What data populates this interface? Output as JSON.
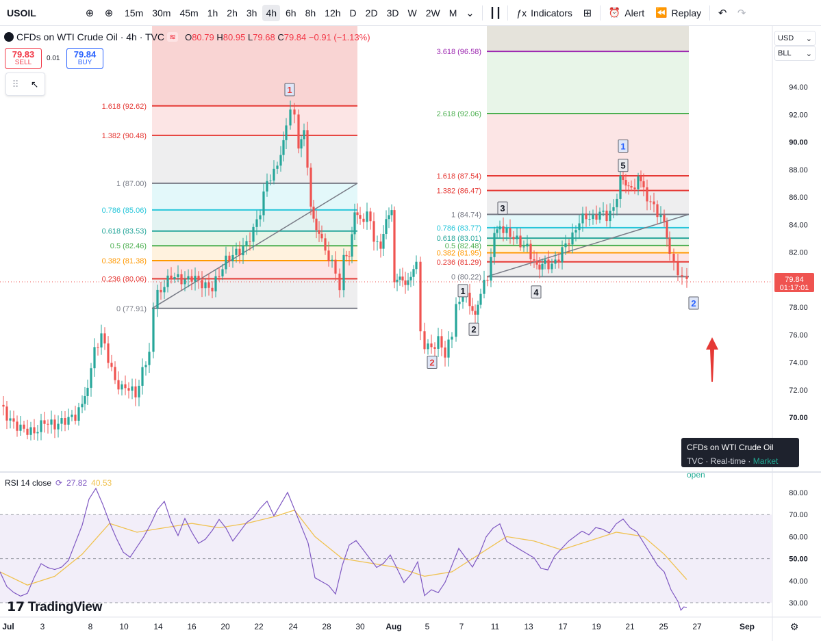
{
  "toolbar": {
    "symbol": "USOIL",
    "intervals": [
      "15m",
      "30m",
      "45m",
      "1h",
      "2h",
      "3h",
      "4h",
      "6h",
      "8h",
      "12h",
      "D",
      "2D",
      "3D",
      "W",
      "2W",
      "M"
    ],
    "active_interval": "4h",
    "indicators_label": "Indicators",
    "alert_label": "Alert",
    "replay_label": "Replay"
  },
  "legend": {
    "title": "CFDs on WTI Crude Oil · 4h · TVC",
    "open": "80.79",
    "high": "80.95",
    "low": "79.68",
    "close": "79.84",
    "change": "−0.91 (−1.13%)",
    "o_label": "O",
    "h_label": "H",
    "l_label": "L",
    "c_label": "C"
  },
  "trade": {
    "sell_price": "79.83",
    "sell_label": "SELL",
    "spread": "0.01",
    "buy_price": "79.84",
    "buy_label": "BUY"
  },
  "scale": {
    "currency": "USD",
    "unit": "BLL"
  },
  "last_price": {
    "value": "79.84",
    "countdown": "01:17:01"
  },
  "tooltip": {
    "title": "CFDs on WTI Crude Oil",
    "source": "TVC",
    "realtime": "Real-time",
    "status": "Market open"
  },
  "rsi": {
    "label": "RSI 14 close",
    "value": "27.82",
    "ma_value": "40.53"
  },
  "brand": {
    "logo_text": "TradingView"
  },
  "colors": {
    "up": "#26a69a",
    "down": "#ef5350",
    "rsi": "#7e57c2",
    "rsi_ma": "#f0c250",
    "label_red": "#e53935"
  },
  "chart_data": {
    "type": "candlestick",
    "price_axis": {
      "ticks": [
        70,
        72,
        74,
        76,
        78,
        80,
        82,
        84,
        86,
        88,
        90,
        92,
        94
      ],
      "bold_ticks": [
        70,
        80,
        90
      ],
      "range": [
        68.5,
        96.5
      ]
    },
    "rsi_axis": {
      "ticks": [
        30,
        40,
        50,
        60,
        70,
        80
      ],
      "bold_ticks": [
        50
      ],
      "band": [
        30,
        70
      ]
    },
    "x_ticks": [
      "Jul",
      "3",
      "8",
      "10",
      "14",
      "16",
      "20",
      "22",
      "24",
      "28",
      "30",
      "Aug",
      "5",
      "7",
      "11",
      "13",
      "17",
      "19",
      "21",
      "25",
      "27",
      "Sep"
    ],
    "price_path": [
      [
        0,
        70.9
      ],
      [
        10,
        70.1
      ],
      [
        20,
        69.5
      ],
      [
        35,
        69.1
      ],
      [
        50,
        68.9
      ],
      [
        65,
        69.7
      ],
      [
        80,
        69.4
      ],
      [
        95,
        69.8
      ],
      [
        110,
        70.1
      ],
      [
        120,
        70.9
      ],
      [
        128,
        72.4
      ],
      [
        138,
        74.8
      ],
      [
        148,
        76.0
      ],
      [
        158,
        74.3
      ],
      [
        168,
        72.6
      ],
      [
        178,
        72.1
      ],
      [
        188,
        72.2
      ],
      [
        198,
        71.6
      ],
      [
        208,
        73.3
      ],
      [
        218,
        74.8
      ],
      [
        224,
        78.1
      ],
      [
        230,
        78.9
      ],
      [
        240,
        79.6
      ],
      [
        250,
        80.3
      ],
      [
        260,
        80.1
      ],
      [
        270,
        79.9
      ],
      [
        280,
        80.2
      ],
      [
        290,
        79.9
      ],
      [
        300,
        79.5
      ],
      [
        310,
        79.4
      ],
      [
        320,
        80.4
      ],
      [
        330,
        81.4
      ],
      [
        340,
        81.8
      ],
      [
        350,
        82.1
      ],
      [
        360,
        82.6
      ],
      [
        370,
        83.6
      ],
      [
        380,
        85.0
      ],
      [
        390,
        87.2
      ],
      [
        400,
        87.7
      ],
      [
        410,
        89.2
      ],
      [
        418,
        91.0
      ],
      [
        424,
        92.7
      ],
      [
        430,
        91.7
      ],
      [
        436,
        89.6
      ],
      [
        444,
        90.6
      ],
      [
        454,
        85.6
      ],
      [
        462,
        83.6
      ],
      [
        470,
        82.7
      ],
      [
        480,
        81.6
      ],
      [
        490,
        80.6
      ],
      [
        496,
        78.9
      ],
      [
        502,
        82.1
      ],
      [
        510,
        81.7
      ],
      [
        518,
        84.6
      ],
      [
        526,
        84.1
      ],
      [
        536,
        84.9
      ],
      [
        546,
        83.1
      ],
      [
        556,
        82.1
      ],
      [
        564,
        84.6
      ],
      [
        572,
        85.4
      ],
      [
        576,
        80.1
      ],
      [
        584,
        80.2
      ],
      [
        592,
        79.3
      ],
      [
        600,
        79.9
      ],
      [
        608,
        81.3
      ],
      [
        614,
        76.0
      ],
      [
        620,
        75.3
      ],
      [
        630,
        75.0
      ],
      [
        640,
        75.6
      ],
      [
        650,
        74.6
      ],
      [
        660,
        76.0
      ],
      [
        666,
        77.9
      ],
      [
        676,
        79.1
      ],
      [
        686,
        78.3
      ],
      [
        694,
        77.8
      ],
      [
        702,
        79.1
      ],
      [
        712,
        80.2
      ],
      [
        722,
        83.1
      ],
      [
        730,
        83.9
      ],
      [
        740,
        83.4
      ],
      [
        750,
        83.1
      ],
      [
        760,
        82.6
      ],
      [
        770,
        82.3
      ],
      [
        780,
        81.3
      ],
      [
        788,
        80.4
      ],
      [
        796,
        81.2
      ],
      [
        806,
        81.0
      ],
      [
        816,
        81.6
      ],
      [
        826,
        82.6
      ],
      [
        836,
        83.1
      ],
      [
        846,
        84.3
      ],
      [
        856,
        84.6
      ],
      [
        866,
        84.4
      ],
      [
        876,
        84.9
      ],
      [
        886,
        84.6
      ],
      [
        896,
        85.1
      ],
      [
        906,
        87.3
      ],
      [
        914,
        86.5
      ],
      [
        922,
        86.6
      ],
      [
        932,
        87.2
      ],
      [
        940,
        86.4
      ],
      [
        950,
        85.6
      ],
      [
        960,
        84.9
      ],
      [
        970,
        84.1
      ],
      [
        978,
        82.1
      ],
      [
        984,
        80.9
      ],
      [
        990,
        80.6
      ],
      [
        996,
        80.2
      ],
      [
        1003,
        79.8
      ]
    ],
    "fib_retracements": [
      {
        "levels": [
          {
            "ratio": "1.618",
            "price": 92.62,
            "color": "#e53935"
          },
          {
            "ratio": "1.382",
            "price": 90.48,
            "color": "#e53935"
          },
          {
            "ratio": "1",
            "price": 87.0,
            "color": "#787b86"
          },
          {
            "ratio": "0.786",
            "price": 85.06,
            "color": "#26c6da"
          },
          {
            "ratio": "0.618",
            "price": 83.53,
            "color": "#26a69a"
          },
          {
            "ratio": "0.5",
            "price": 82.46,
            "color": "#4caf50"
          },
          {
            "ratio": "0.382",
            "price": 81.38,
            "color": "#ff9800"
          },
          {
            "ratio": "0.236",
            "price": 80.06,
            "color": "#e53935"
          },
          {
            "ratio": "0",
            "price": 77.91,
            "color": "#787b86"
          }
        ]
      },
      {
        "levels": [
          {
            "ratio": "3.618",
            "price": 96.58,
            "color": "#9c27b0"
          },
          {
            "ratio": "2.618",
            "price": 92.06,
            "color": "#4caf50"
          },
          {
            "ratio": "1.618",
            "price": 87.54,
            "color": "#e53935"
          },
          {
            "ratio": "1.382",
            "price": 86.47,
            "color": "#e53935"
          },
          {
            "ratio": "1",
            "price": 84.74,
            "color": "#787b86"
          },
          {
            "ratio": "0.786",
            "price": 83.77,
            "color": "#26c6da"
          },
          {
            "ratio": "0.618",
            "price": 83.01,
            "color": "#26a69a"
          },
          {
            "ratio": "0.5",
            "price": 82.48,
            "color": "#4caf50"
          },
          {
            "ratio": "0.382",
            "price": 81.95,
            "color": "#ff9800"
          },
          {
            "ratio": "0.236",
            "price": 81.29,
            "color": "#e53935"
          },
          {
            "ratio": "0",
            "price": 80.22,
            "color": "#787b86"
          }
        ]
      }
    ],
    "wave_labels": [
      {
        "text": "1",
        "color": "#e53935",
        "price": 93.8
      },
      {
        "text": "2",
        "color": "#e53935",
        "price": 74.0
      },
      {
        "text": "1",
        "color": "#131722",
        "price": 79.2
      },
      {
        "text": "2",
        "color": "#131722",
        "price": 76.4
      },
      {
        "text": "3",
        "color": "#131722",
        "price": 85.2
      },
      {
        "text": "4",
        "color": "#131722",
        "price": 79.1
      },
      {
        "text": "5",
        "color": "#131722",
        "price": 88.3
      },
      {
        "text": "1",
        "color": "#2962ff",
        "price": 89.7
      },
      {
        "text": "2",
        "color": "#2962ff",
        "price": 78.3
      }
    ],
    "rsi_path": [
      [
        0,
        44
      ],
      [
        10,
        37
      ],
      [
        20,
        34
      ],
      [
        30,
        32
      ],
      [
        40,
        33
      ],
      [
        50,
        40
      ],
      [
        60,
        46
      ],
      [
        70,
        44
      ],
      [
        80,
        43
      ],
      [
        90,
        44
      ],
      [
        100,
        47
      ],
      [
        110,
        55
      ],
      [
        120,
        63
      ],
      [
        130,
        75
      ],
      [
        140,
        80
      ],
      [
        150,
        73
      ],
      [
        160,
        65
      ],
      [
        170,
        58
      ],
      [
        180,
        52
      ],
      [
        190,
        50
      ],
      [
        200,
        55
      ],
      [
        210,
        60
      ],
      [
        220,
        66
      ],
      [
        230,
        73
      ],
      [
        240,
        77
      ],
      [
        250,
        68
      ],
      [
        260,
        62
      ],
      [
        270,
        70
      ],
      [
        280,
        64
      ],
      [
        290,
        59
      ],
      [
        300,
        61
      ],
      [
        310,
        65
      ],
      [
        320,
        70
      ],
      [
        330,
        66
      ],
      [
        340,
        60
      ],
      [
        350,
        64
      ],
      [
        360,
        68
      ],
      [
        370,
        70
      ],
      [
        380,
        74
      ],
      [
        390,
        77
      ],
      [
        400,
        70
      ],
      [
        410,
        75
      ],
      [
        420,
        80
      ],
      [
        430,
        72
      ],
      [
        440,
        64
      ],
      [
        450,
        56
      ],
      [
        460,
        40
      ],
      [
        470,
        38
      ],
      [
        480,
        36
      ],
      [
        490,
        32
      ],
      [
        500,
        45
      ],
      [
        510,
        54
      ],
      [
        520,
        56
      ],
      [
        530,
        52
      ],
      [
        540,
        48
      ],
      [
        550,
        44
      ],
      [
        560,
        46
      ],
      [
        570,
        50
      ],
      [
        580,
        44
      ],
      [
        590,
        38
      ],
      [
        600,
        42
      ],
      [
        610,
        48
      ],
      [
        620,
        33
      ],
      [
        630,
        36
      ],
      [
        640,
        35
      ],
      [
        650,
        40
      ],
      [
        660,
        48
      ],
      [
        670,
        56
      ],
      [
        680,
        52
      ],
      [
        690,
        48
      ],
      [
        700,
        54
      ],
      [
        710,
        62
      ],
      [
        720,
        66
      ],
      [
        730,
        68
      ],
      [
        740,
        60
      ],
      [
        750,
        58
      ],
      [
        760,
        56
      ],
      [
        770,
        54
      ],
      [
        780,
        52
      ],
      [
        790,
        47
      ],
      [
        800,
        46
      ],
      [
        810,
        52
      ],
      [
        820,
        55
      ],
      [
        830,
        58
      ],
      [
        840,
        60
      ],
      [
        850,
        62
      ],
      [
        860,
        60
      ],
      [
        870,
        63
      ],
      [
        880,
        62
      ],
      [
        890,
        60
      ],
      [
        900,
        64
      ],
      [
        910,
        66
      ],
      [
        920,
        62
      ],
      [
        930,
        60
      ],
      [
        940,
        55
      ],
      [
        950,
        50
      ],
      [
        960,
        45
      ],
      [
        970,
        42
      ],
      [
        980,
        34
      ],
      [
        990,
        29
      ],
      [
        1003,
        27.8
      ]
    ],
    "rsi_ma_path": [
      [
        0,
        44
      ],
      [
        40,
        38
      ],
      [
        80,
        42
      ],
      [
        120,
        52
      ],
      [
        160,
        66
      ],
      [
        200,
        62
      ],
      [
        240,
        64
      ],
      [
        280,
        66
      ],
      [
        320,
        64
      ],
      [
        360,
        66
      ],
      [
        400,
        69
      ],
      [
        430,
        72
      ],
      [
        460,
        60
      ],
      [
        500,
        50
      ],
      [
        540,
        48
      ],
      [
        580,
        46
      ],
      [
        620,
        42
      ],
      [
        660,
        44
      ],
      [
        700,
        52
      ],
      [
        740,
        60
      ],
      [
        780,
        58
      ],
      [
        820,
        54
      ],
      [
        860,
        58
      ],
      [
        900,
        62
      ],
      [
        940,
        60
      ],
      [
        970,
        52
      ],
      [
        1003,
        40.5
      ]
    ]
  }
}
